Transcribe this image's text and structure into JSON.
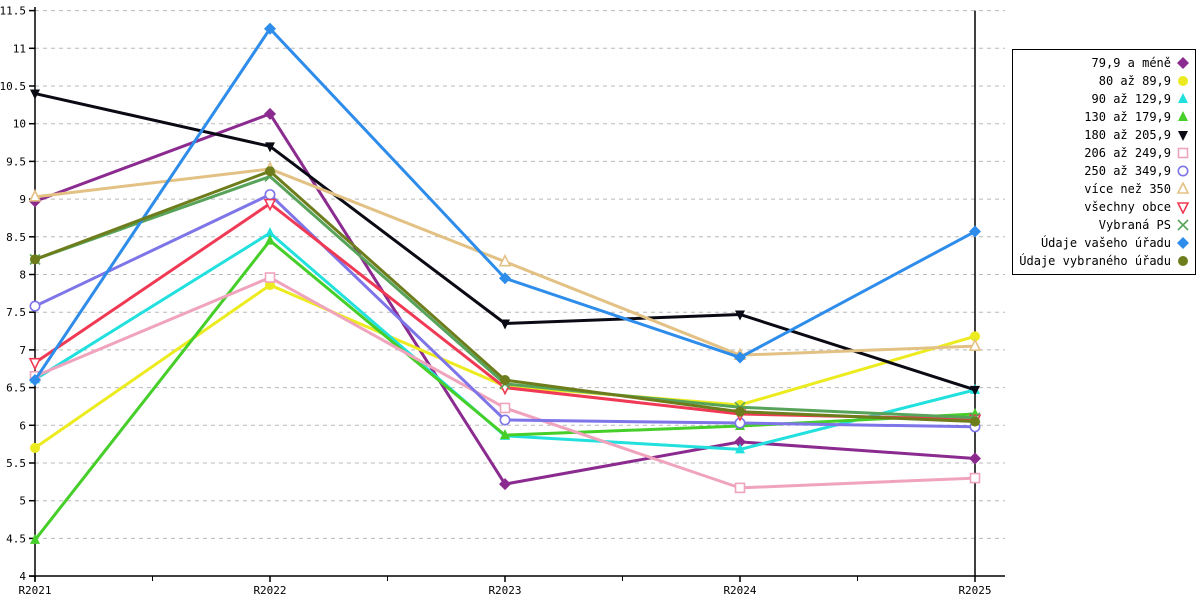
{
  "chart_data": {
    "type": "line",
    "title": "",
    "xlabel": "",
    "ylabel": "",
    "x_labels": [
      "R2021",
      "R2022",
      "R2023",
      "R2024",
      "R2025"
    ],
    "y_axis": {
      "min": 4,
      "max": 11.5,
      "step": 0.5,
      "tick_labels": [
        "4",
        "4.5",
        "5",
        "5.5",
        "6",
        "6.5",
        "7",
        "7.5",
        "8",
        "8.5",
        "9",
        "9.5",
        "10",
        "10.5",
        "11",
        "11.5"
      ]
    },
    "grid": {
      "horizontal": true,
      "style": "dashed",
      "color": "#b8b8b8"
    },
    "axis_color": "#000000",
    "legend_position": "right",
    "series": [
      {
        "name": "79,9 a méně",
        "color": "#8b2b8f",
        "marker": "diamond",
        "values": [
          8.97,
          10.13,
          5.22,
          5.78,
          5.56
        ]
      },
      {
        "name": "80 až 89,9",
        "color": "#ebeb1f",
        "marker": "circle",
        "values": [
          5.7,
          7.86,
          6.52,
          6.27,
          7.18
        ]
      },
      {
        "name": "90 až 129,9",
        "color": "#21e0dd",
        "marker": "triangle-up",
        "values": [
          6.61,
          8.55,
          5.86,
          5.68,
          6.47
        ]
      },
      {
        "name": "130 až 179,9",
        "color": "#46ce29",
        "marker": "triangle-up",
        "values": [
          4.48,
          8.45,
          5.87,
          5.99,
          6.15
        ]
      },
      {
        "name": "180 až 205,9",
        "color": "#0a0a14",
        "marker": "triangle-down",
        "values": [
          10.4,
          9.7,
          7.35,
          7.47,
          6.47
        ]
      },
      {
        "name": "206 až 249,9",
        "color": "#f0a3bc",
        "marker": "square-open",
        "values": [
          6.65,
          7.96,
          6.23,
          5.17,
          5.3
        ]
      },
      {
        "name": "250 až 349,9",
        "color": "#7d75e8",
        "marker": "circle-open",
        "values": [
          7.58,
          9.06,
          6.07,
          6.03,
          5.98
        ]
      },
      {
        "name": "více než 350",
        "color": "#e3c184",
        "marker": "triangle-up-open",
        "values": [
          9.03,
          9.4,
          8.17,
          6.93,
          7.05
        ]
      },
      {
        "name": "všechny obce",
        "color": "#f03a55",
        "marker": "triangle-down-open",
        "values": [
          6.83,
          8.94,
          6.5,
          6.15,
          6.08
        ]
      },
      {
        "name": "Vybraná PS",
        "color": "#57a359",
        "marker": "x-cross",
        "values": [
          8.2,
          9.3,
          6.55,
          6.24,
          6.1
        ]
      },
      {
        "name": "Údaje vašeho úřadu",
        "color": "#2e8ceb",
        "marker": "diamond",
        "values": [
          6.6,
          11.26,
          7.95,
          6.9,
          8.57
        ]
      },
      {
        "name": "Údaje vybraného úřadu",
        "color": "#6d7d1c",
        "marker": "circle",
        "values": [
          8.2,
          9.37,
          6.6,
          6.18,
          6.05
        ]
      }
    ]
  }
}
